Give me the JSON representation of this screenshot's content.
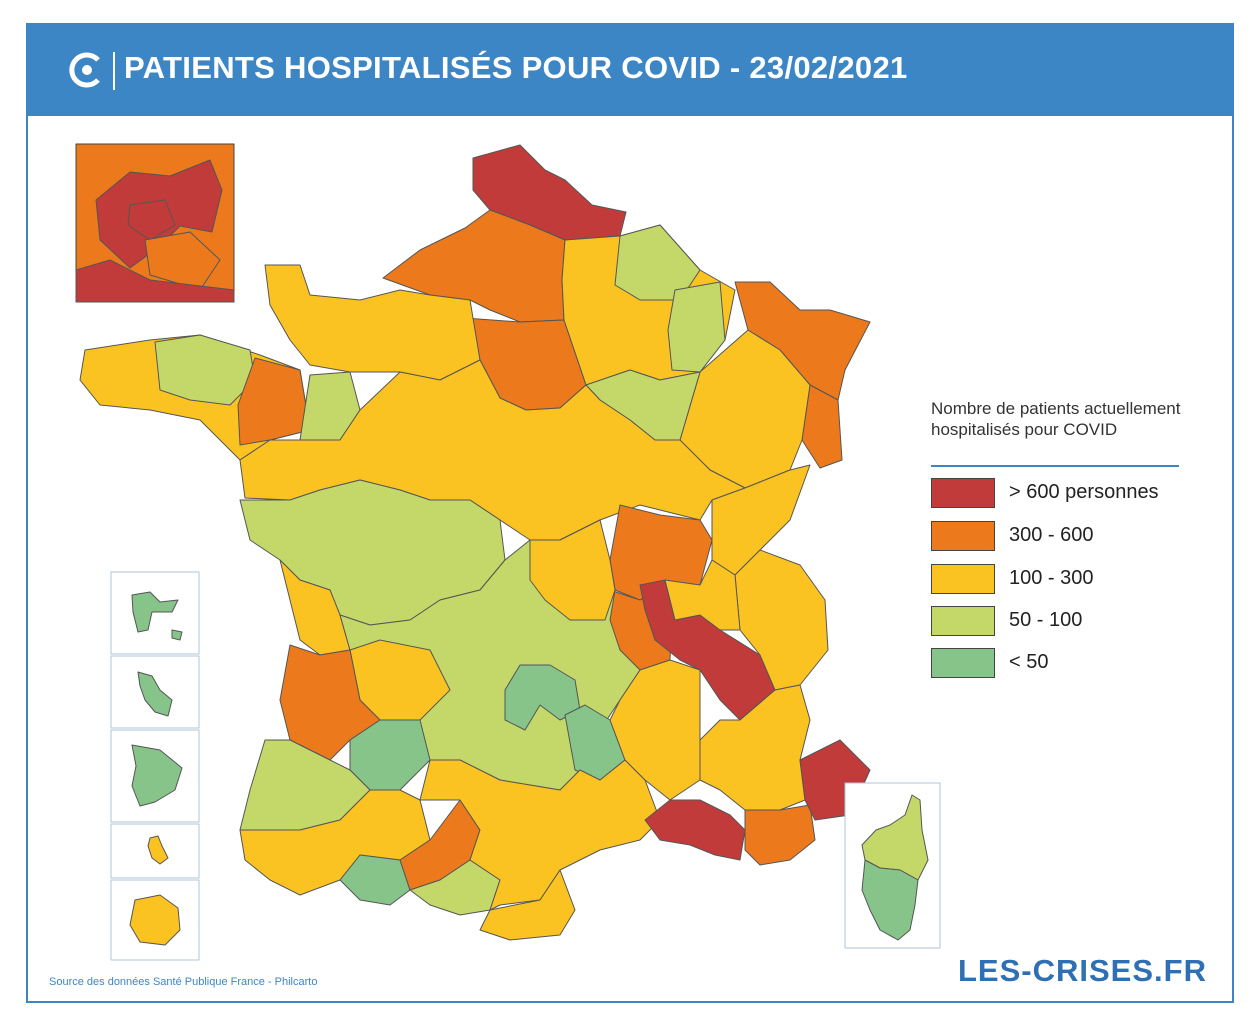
{
  "header": {
    "title": "PATIENTS HOSPITALISÉS POUR COVID - 23/02/2021",
    "logo_icon": "les-crises-c-logo-icon",
    "background_color": "#3d86c6"
  },
  "legend": {
    "title": "Nombre de patients actuellement hospitalisés pour COVID",
    "items": [
      {
        "label": "> 600 personnes",
        "color": "#c23b3b"
      },
      {
        "label": "300 - 600",
        "color": "#ec7a1d"
      },
      {
        "label": "100 - 300",
        "color": "#fbc321"
      },
      {
        "label": "50 - 100",
        "color": "#c4d86a"
      },
      {
        "label": "< 50",
        "color": "#86c48a"
      }
    ]
  },
  "map": {
    "insets": [
      "paris-petite-couronne",
      "guadeloupe",
      "martinique",
      "guyane",
      "mayotte",
      "la-reunion",
      "corse"
    ]
  },
  "footer": {
    "source": "Source des données Santé Publique France - Philcarto",
    "brand": "LES-CRISES.FR"
  }
}
